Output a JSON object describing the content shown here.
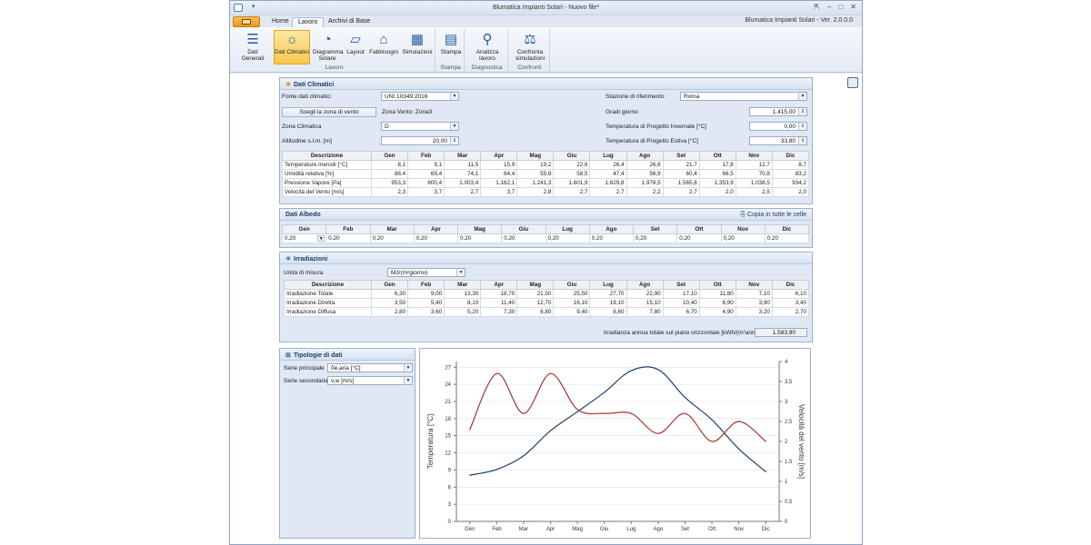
{
  "titlebar": {
    "quick_access": "▾",
    "title": "Blumatica Impianti Solari - Nuovo file*",
    "version": "Blumatica Impianti Solari - Ver. 2.0.0.0"
  },
  "tabs": [
    "Home",
    "Lavoro",
    "Archivi di Base"
  ],
  "ribbon": {
    "lavoro_buttons": [
      "Dati Generali",
      "Dati Climatici",
      "Diagramma Solare",
      "Layout",
      "Fabbisogni",
      "Simulazioni"
    ],
    "lavoro_label": "Lavoro",
    "stampa_button": "Stampa",
    "stampa_label": "Stampa",
    "diag_button": "Analizza lavoro",
    "diag_label": "Diagnostica",
    "conf_button": "Confronta simulazioni",
    "conf_label": "Confronti"
  },
  "climatici": {
    "title": "Dati Climatici",
    "fonte_label": "Fonte dati climatici",
    "fonte_value": "UNI 10349:2016",
    "scegli_button": "Scegli la zona di vento",
    "zona_vento": "Zona Vento: Zona3",
    "zona_clim_label": "Zona Climatica",
    "zona_clim_value": "D",
    "altitudine_label": "Altitudine s.l.m. [m]",
    "altitudine_value": "20,00",
    "stazione_label": "Stazione di riferimento",
    "stazione_value": "Roma",
    "gradi_label": "Gradi giorno",
    "gradi_value": "1.415,00",
    "tinv_label": "Temperatura di Progetto Invernale [°C]",
    "tinv_value": "0,00",
    "test_label": "Temperatura di Progetto Estiva [°C]",
    "test_value": "33,80",
    "headers": [
      "Descrizione",
      "Gen",
      "Feb",
      "Mar",
      "Apr",
      "Mag",
      "Giu",
      "Lug",
      "Ago",
      "Set",
      "Ott",
      "Nov",
      "Dic"
    ],
    "rows": [
      [
        "Temperature mensili [°C]",
        "8,1",
        "9,1",
        "11,5",
        "15,9",
        "19,2",
        "22,6",
        "26,4",
        "26,6",
        "21,7",
        "17,8",
        "12,7",
        "8,7"
      ],
      [
        "Umidità relativa [%]",
        "88,4",
        "69,4",
        "74,1",
        "64,4",
        "55,9",
        "58,5",
        "47,4",
        "56,9",
        "60,4",
        "66,5",
        "70,8",
        "83,2"
      ],
      [
        "Pressione Vapore [Pa]",
        "953,3",
        "800,4",
        "1.003,4",
        "1.162,1",
        "1.241,3",
        "1.601,9",
        "1.629,8",
        "1.978,5",
        "1.565,8",
        "1.353,9",
        "1.038,5",
        "934,2"
      ],
      [
        "Velocità del Vento [m/s]",
        "2,3",
        "3,7",
        "2,7",
        "3,7",
        "2,8",
        "2,7",
        "2,7",
        "2,2",
        "2,7",
        "2,0",
        "2,5",
        "2,0"
      ]
    ]
  },
  "albedo": {
    "title": "Dati Albedo",
    "copy_label": "Copia in tutte le celle",
    "headers": [
      "Gen",
      "Feb",
      "Mar",
      "Apr",
      "Mag",
      "Giu",
      "Lug",
      "Ago",
      "Set",
      "Ott",
      "Nov",
      "Dic"
    ],
    "values": [
      "0,20",
      "0,20",
      "0,20",
      "0,20",
      "0,20",
      "0,20",
      "0,20",
      "0,20",
      "0,20",
      "0,20",
      "0,20",
      "0,20"
    ]
  },
  "irradiazioni": {
    "title": "Irradiazioni",
    "unita_label": "Unità di misura",
    "unita_value": "MJ/(m²giorno)",
    "headers": [
      "Descrizione",
      "Gen",
      "Feb",
      "Mar",
      "Apr",
      "Mag",
      "Giu",
      "Lug",
      "Ago",
      "Set",
      "Ott",
      "Nov",
      "Dic"
    ],
    "rows": [
      [
        "Irradiazione Totale",
        "6,30",
        "9,00",
        "13,30",
        "18,70",
        "21,50",
        "25,50",
        "27,70",
        "22,90",
        "17,10",
        "11,80",
        "7,10",
        "6,10"
      ],
      [
        "Irradiazione Diretta",
        "3,50",
        "5,40",
        "8,10",
        "11,40",
        "12,70",
        "16,10",
        "19,10",
        "15,10",
        "10,40",
        "6,90",
        "3,90",
        "3,40"
      ],
      [
        "Irradiazione Diffusa",
        "2,80",
        "3,60",
        "5,20",
        "7,30",
        "8,80",
        "9,40",
        "8,60",
        "7,80",
        "6,70",
        "4,90",
        "3,20",
        "2,70"
      ]
    ],
    "annua_label": "Irradianza annua totale sul piano orizzontale [kWh/(m²anno)]",
    "annua_value": "1.583,90"
  },
  "tipologie": {
    "title": "Tipologie di dati",
    "principale_label": "Serie principale",
    "principale_value": "0e,aria [°C]",
    "secondaria_label": "Serie secondaria",
    "secondaria_value": "v,w [m/s]"
  },
  "chart_data": {
    "type": "line",
    "categories": [
      "Gen",
      "Feb",
      "Mar",
      "Apr",
      "Mag",
      "Giu",
      "Lug",
      "Ago",
      "Set",
      "Ott",
      "Nov",
      "Dic"
    ],
    "series": [
      {
        "name": "",
        "axis": "left",
        "color": "#1f3f6e",
        "values": [
          8.1,
          9.1,
          11.5,
          15.9,
          19.2,
          22.6,
          26.4,
          26.6,
          21.7,
          17.8,
          12.7,
          8.7
        ]
      },
      {
        "name": "",
        "axis": "right",
        "color": "#a93232",
        "values": [
          2.3,
          3.7,
          2.7,
          3.7,
          2.8,
          2.7,
          2.7,
          2.2,
          2.7,
          2.0,
          2.5,
          2.0
        ]
      }
    ],
    "ylabel": "Temperatura [°C]",
    "ylim": [
      0,
      28
    ],
    "yticks": [
      "0",
      "3",
      "6",
      "9",
      "12",
      "15",
      "18",
      "21",
      "24",
      "27"
    ],
    "y2label": "Velocità del vento [m/s]",
    "y2lim": [
      0,
      4
    ],
    "y2ticks": [
      "0",
      "0,5",
      "1",
      "1,5",
      "2",
      "2,5",
      "3",
      "3,5",
      "4"
    ],
    "grid": true
  }
}
